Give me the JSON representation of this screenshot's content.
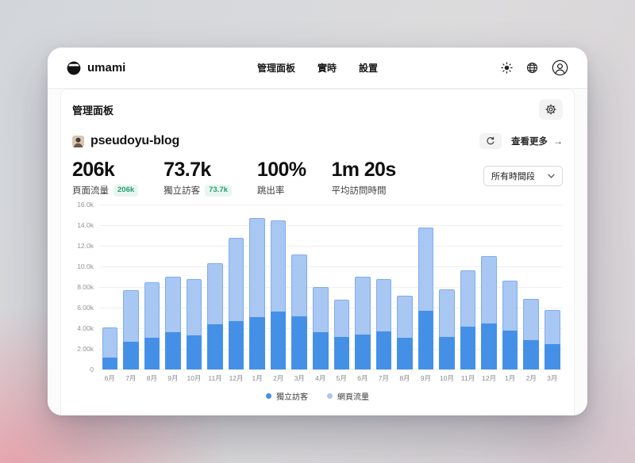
{
  "header": {
    "logo_text": "umami",
    "nav": [
      {
        "label": "管理面板"
      },
      {
        "label": "實時"
      },
      {
        "label": "設置"
      }
    ],
    "icons": [
      "sun-icon",
      "globe-icon",
      "user-icon"
    ]
  },
  "dashboard": {
    "title": "管理面板",
    "gear_icon": "gear-icon"
  },
  "website": {
    "name": "pseudoyu-blog",
    "refresh_icon": "refresh-icon",
    "view_more_label": "查看更多",
    "view_more_arrow": "→"
  },
  "stats": [
    {
      "value": "206k",
      "label": "頁面流量",
      "badge": "206k"
    },
    {
      "value": "73.7k",
      "label": "獨立訪客",
      "badge": "73.7k"
    },
    {
      "value": "100%",
      "label": "跳出率",
      "badge": ""
    },
    {
      "value": "1m 20s",
      "label": "平均訪問時間",
      "badge": ""
    }
  ],
  "date_filter": {
    "selected": "所有時間段",
    "chevron_icon": "chevron-down-icon"
  },
  "chart_data": {
    "type": "bar",
    "stacked": true,
    "title": "",
    "xlabel": "",
    "ylabel": "",
    "grid": true,
    "legend_position": "bottom",
    "ylim": [
      0,
      16000
    ],
    "yticks": [
      "16.0k",
      "14.0k",
      "12.0k",
      "10.0k",
      "8.00k",
      "6.00k",
      "4.00k",
      "2.00k",
      "0"
    ],
    "categories": [
      "6月",
      "7月",
      "8月",
      "9月",
      "10月",
      "11月",
      "12月",
      "1月",
      "2月",
      "3月",
      "4月",
      "5月",
      "6月",
      "7月",
      "8月",
      "9月",
      "10月",
      "11月",
      "12月",
      "1月",
      "2月",
      "3月"
    ],
    "series": [
      {
        "name": "獨立訪客",
        "color": "#4590e7",
        "values": [
          1200,
          2700,
          3100,
          3600,
          3300,
          4400,
          4700,
          5100,
          5600,
          5200,
          3600,
          3200,
          3400,
          3700,
          3100,
          5700,
          3200,
          4200,
          4500,
          3800,
          2900,
          2500
        ]
      },
      {
        "name": "網頁流量",
        "color": "#a9c7f3",
        "border_color": "#7fadee",
        "values": [
          4100,
          7700,
          8500,
          9000,
          8800,
          10300,
          12800,
          14700,
          14500,
          11200,
          8000,
          6800,
          9000,
          8800,
          7200,
          13800,
          7800,
          9600,
          11000,
          8600,
          6900,
          5800
        ]
      }
    ]
  },
  "colors": {
    "accent_dark": "#4590e7",
    "accent_light": "#a9c7f3",
    "badge_bg": "#e9f6f0",
    "badge_text": "#2a9d72"
  }
}
